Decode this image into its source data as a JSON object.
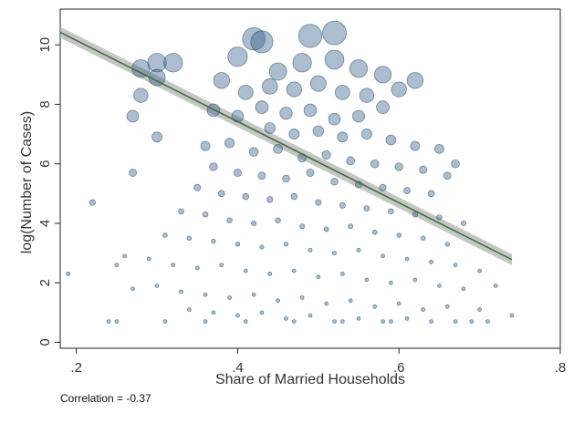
{
  "chart_data": {
    "type": "scatter",
    "title": "",
    "xlabel": "Share of Married Households",
    "ylabel": "log(Number of Cases)",
    "xlim": [
      0.18,
      0.8
    ],
    "ylim": [
      -0.2,
      11.2
    ],
    "xticks": [
      0.2,
      0.4,
      0.6,
      0.8
    ],
    "xtick_labels": [
      ".2",
      ".4",
      ".6",
      ".8"
    ],
    "yticks": [
      0,
      2,
      4,
      6,
      8,
      10
    ],
    "ytick_labels": [
      "0",
      "2",
      "4",
      "6",
      "8",
      "10"
    ],
    "grid": false,
    "marker_color": "#2c5a85",
    "fit_line_color": "#3a6b35",
    "ci_color": "#b3b3b3",
    "fit_line": {
      "x": [
        0.18,
        0.74
      ],
      "y": [
        10.42,
        2.78
      ]
    },
    "correlation_note": "Correlation = -0.37",
    "points": [
      {
        "x": 0.42,
        "y": 10.2
      },
      {
        "x": 0.43,
        "y": 10.1
      },
      {
        "x": 0.4,
        "y": 9.6
      },
      {
        "x": 0.49,
        "y": 10.3
      },
      {
        "x": 0.52,
        "y": 10.4
      },
      {
        "x": 0.3,
        "y": 9.4
      },
      {
        "x": 0.28,
        "y": 9.2
      },
      {
        "x": 0.32,
        "y": 9.4
      },
      {
        "x": 0.52,
        "y": 9.5
      },
      {
        "x": 0.48,
        "y": 9.4
      },
      {
        "x": 0.45,
        "y": 9.1
      },
      {
        "x": 0.55,
        "y": 9.2
      },
      {
        "x": 0.58,
        "y": 9.0
      },
      {
        "x": 0.62,
        "y": 8.8
      },
      {
        "x": 0.38,
        "y": 8.8
      },
      {
        "x": 0.41,
        "y": 8.4
      },
      {
        "x": 0.44,
        "y": 8.6
      },
      {
        "x": 0.47,
        "y": 8.5
      },
      {
        "x": 0.5,
        "y": 8.7
      },
      {
        "x": 0.53,
        "y": 8.4
      },
      {
        "x": 0.56,
        "y": 8.3
      },
      {
        "x": 0.6,
        "y": 8.5
      },
      {
        "x": 0.27,
        "y": 7.6
      },
      {
        "x": 0.28,
        "y": 8.3
      },
      {
        "x": 0.3,
        "y": 8.9
      },
      {
        "x": 0.37,
        "y": 7.8
      },
      {
        "x": 0.4,
        "y": 7.6
      },
      {
        "x": 0.43,
        "y": 7.9
      },
      {
        "x": 0.46,
        "y": 7.7
      },
      {
        "x": 0.49,
        "y": 7.8
      },
      {
        "x": 0.52,
        "y": 7.5
      },
      {
        "x": 0.55,
        "y": 7.6
      },
      {
        "x": 0.58,
        "y": 7.9
      },
      {
        "x": 0.44,
        "y": 7.2
      },
      {
        "x": 0.47,
        "y": 7.0
      },
      {
        "x": 0.5,
        "y": 7.1
      },
      {
        "x": 0.53,
        "y": 6.9
      },
      {
        "x": 0.56,
        "y": 7.0
      },
      {
        "x": 0.59,
        "y": 6.8
      },
      {
        "x": 0.62,
        "y": 6.6
      },
      {
        "x": 0.65,
        "y": 6.5
      },
      {
        "x": 0.67,
        "y": 6.0
      },
      {
        "x": 0.3,
        "y": 6.9
      },
      {
        "x": 0.27,
        "y": 5.7
      },
      {
        "x": 0.36,
        "y": 6.6
      },
      {
        "x": 0.39,
        "y": 6.7
      },
      {
        "x": 0.42,
        "y": 6.4
      },
      {
        "x": 0.45,
        "y": 6.5
      },
      {
        "x": 0.48,
        "y": 6.2
      },
      {
        "x": 0.51,
        "y": 6.3
      },
      {
        "x": 0.54,
        "y": 6.1
      },
      {
        "x": 0.57,
        "y": 6.0
      },
      {
        "x": 0.6,
        "y": 5.9
      },
      {
        "x": 0.63,
        "y": 5.8
      },
      {
        "x": 0.66,
        "y": 5.6
      },
      {
        "x": 0.37,
        "y": 5.9
      },
      {
        "x": 0.4,
        "y": 5.7
      },
      {
        "x": 0.43,
        "y": 5.6
      },
      {
        "x": 0.46,
        "y": 5.5
      },
      {
        "x": 0.49,
        "y": 5.7
      },
      {
        "x": 0.52,
        "y": 5.4
      },
      {
        "x": 0.55,
        "y": 5.3
      },
      {
        "x": 0.58,
        "y": 5.2
      },
      {
        "x": 0.61,
        "y": 5.1
      },
      {
        "x": 0.64,
        "y": 5.0
      },
      {
        "x": 0.35,
        "y": 5.2
      },
      {
        "x": 0.38,
        "y": 5.0
      },
      {
        "x": 0.41,
        "y": 4.9
      },
      {
        "x": 0.44,
        "y": 4.8
      },
      {
        "x": 0.47,
        "y": 4.9
      },
      {
        "x": 0.5,
        "y": 4.7
      },
      {
        "x": 0.53,
        "y": 4.6
      },
      {
        "x": 0.56,
        "y": 4.5
      },
      {
        "x": 0.59,
        "y": 4.4
      },
      {
        "x": 0.62,
        "y": 4.3
      },
      {
        "x": 0.65,
        "y": 4.2
      },
      {
        "x": 0.68,
        "y": 4.0
      },
      {
        "x": 0.33,
        "y": 4.4
      },
      {
        "x": 0.36,
        "y": 4.3
      },
      {
        "x": 0.39,
        "y": 4.1
      },
      {
        "x": 0.42,
        "y": 4.0
      },
      {
        "x": 0.45,
        "y": 4.1
      },
      {
        "x": 0.48,
        "y": 3.9
      },
      {
        "x": 0.51,
        "y": 3.8
      },
      {
        "x": 0.54,
        "y": 3.9
      },
      {
        "x": 0.57,
        "y": 3.7
      },
      {
        "x": 0.6,
        "y": 3.6
      },
      {
        "x": 0.63,
        "y": 3.5
      },
      {
        "x": 0.66,
        "y": 3.3
      },
      {
        "x": 0.31,
        "y": 3.6
      },
      {
        "x": 0.34,
        "y": 3.5
      },
      {
        "x": 0.37,
        "y": 3.4
      },
      {
        "x": 0.4,
        "y": 3.3
      },
      {
        "x": 0.43,
        "y": 3.2
      },
      {
        "x": 0.46,
        "y": 3.3
      },
      {
        "x": 0.49,
        "y": 3.1
      },
      {
        "x": 0.52,
        "y": 3.0
      },
      {
        "x": 0.55,
        "y": 3.1
      },
      {
        "x": 0.58,
        "y": 2.9
      },
      {
        "x": 0.61,
        "y": 2.8
      },
      {
        "x": 0.64,
        "y": 2.7
      },
      {
        "x": 0.67,
        "y": 2.6
      },
      {
        "x": 0.7,
        "y": 2.4
      },
      {
        "x": 0.29,
        "y": 2.8
      },
      {
        "x": 0.32,
        "y": 2.6
      },
      {
        "x": 0.35,
        "y": 2.5
      },
      {
        "x": 0.38,
        "y": 2.6
      },
      {
        "x": 0.41,
        "y": 2.4
      },
      {
        "x": 0.44,
        "y": 2.3
      },
      {
        "x": 0.47,
        "y": 2.4
      },
      {
        "x": 0.5,
        "y": 2.2
      },
      {
        "x": 0.53,
        "y": 2.3
      },
      {
        "x": 0.56,
        "y": 2.1
      },
      {
        "x": 0.59,
        "y": 2.0
      },
      {
        "x": 0.62,
        "y": 2.1
      },
      {
        "x": 0.65,
        "y": 1.9
      },
      {
        "x": 0.68,
        "y": 1.8
      },
      {
        "x": 0.72,
        "y": 1.9
      },
      {
        "x": 0.26,
        "y": 2.9
      },
      {
        "x": 0.25,
        "y": 2.6
      },
      {
        "x": 0.22,
        "y": 4.7
      },
      {
        "x": 0.19,
        "y": 2.3
      },
      {
        "x": 0.24,
        "y": 0.7
      },
      {
        "x": 0.27,
        "y": 1.8
      },
      {
        "x": 0.3,
        "y": 1.9
      },
      {
        "x": 0.33,
        "y": 1.7
      },
      {
        "x": 0.36,
        "y": 1.6
      },
      {
        "x": 0.39,
        "y": 1.5
      },
      {
        "x": 0.42,
        "y": 1.6
      },
      {
        "x": 0.45,
        "y": 1.4
      },
      {
        "x": 0.48,
        "y": 1.5
      },
      {
        "x": 0.51,
        "y": 1.3
      },
      {
        "x": 0.54,
        "y": 1.4
      },
      {
        "x": 0.57,
        "y": 1.2
      },
      {
        "x": 0.6,
        "y": 1.3
      },
      {
        "x": 0.63,
        "y": 1.1
      },
      {
        "x": 0.66,
        "y": 1.2
      },
      {
        "x": 0.7,
        "y": 1.1
      },
      {
        "x": 0.74,
        "y": 0.9
      },
      {
        "x": 0.34,
        "y": 1.1
      },
      {
        "x": 0.37,
        "y": 1.0
      },
      {
        "x": 0.4,
        "y": 0.9
      },
      {
        "x": 0.43,
        "y": 1.0
      },
      {
        "x": 0.46,
        "y": 0.8
      },
      {
        "x": 0.49,
        "y": 0.9
      },
      {
        "x": 0.52,
        "y": 0.7
      },
      {
        "x": 0.55,
        "y": 0.8
      },
      {
        "x": 0.58,
        "y": 0.7
      },
      {
        "x": 0.61,
        "y": 0.8
      },
      {
        "x": 0.64,
        "y": 0.7
      },
      {
        "x": 0.67,
        "y": 0.7
      },
      {
        "x": 0.71,
        "y": 0.7
      },
      {
        "x": 0.25,
        "y": 0.7
      },
      {
        "x": 0.31,
        "y": 0.7
      },
      {
        "x": 0.36,
        "y": 0.7
      },
      {
        "x": 0.41,
        "y": 0.7
      },
      {
        "x": 0.47,
        "y": 0.7
      },
      {
        "x": 0.53,
        "y": 0.7
      },
      {
        "x": 0.59,
        "y": 0.7
      },
      {
        "x": 0.69,
        "y": 0.7
      }
    ]
  }
}
